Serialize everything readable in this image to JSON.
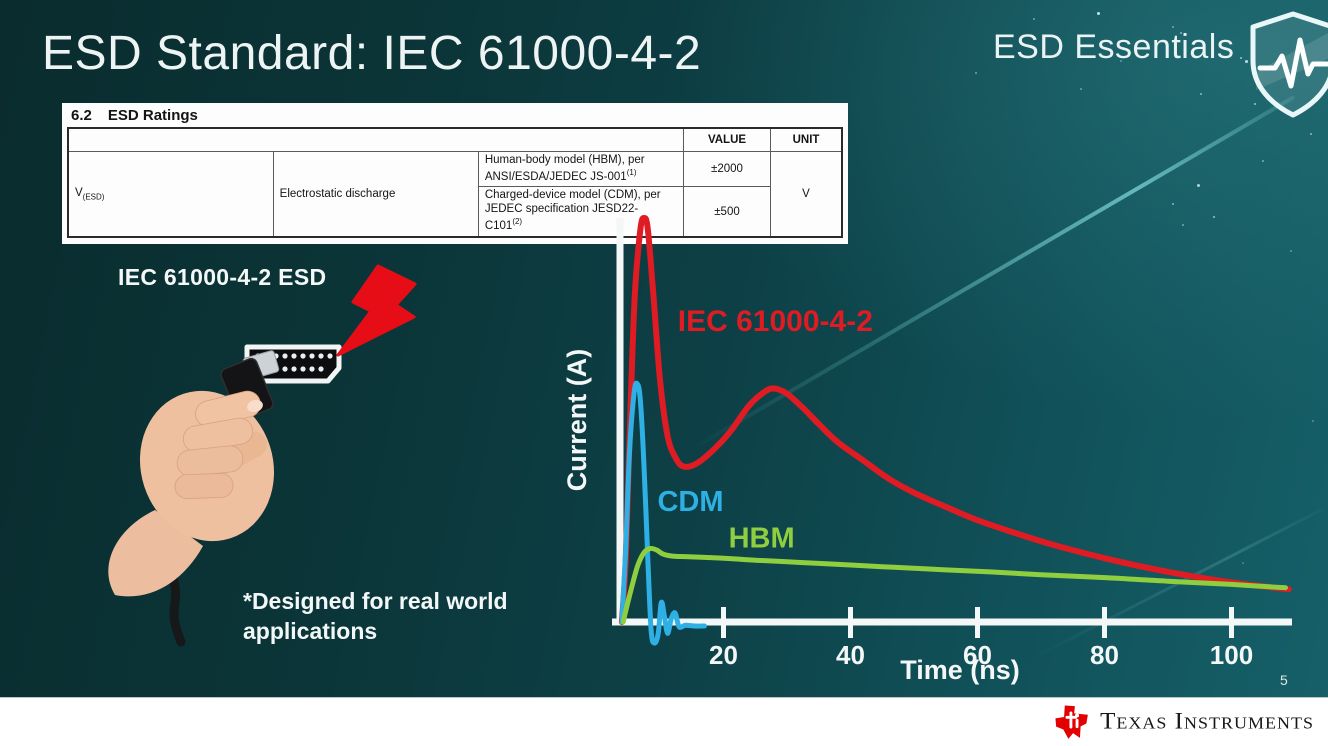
{
  "slide": {
    "title": "ESD Standard: IEC 61000-4-2",
    "badge": "ESD Essentials",
    "page_number": "5",
    "illustration_label": "IEC 61000-4-2 ESD",
    "footnote_line1": "*Designed for real world",
    "footnote_line2": "applications"
  },
  "ratings_table": {
    "section_number": "6.2",
    "section_title": "ESD Ratings",
    "headers": {
      "value": "VALUE",
      "unit": "UNIT"
    },
    "parameter": {
      "symbol": "V",
      "symbol_subscript": "(ESD)",
      "name": "Electrostatic discharge"
    },
    "rows": [
      {
        "description": "Human-body model (HBM), per ANSI/ESDA/JEDEC JS-001",
        "footnote_ref": "(1)",
        "value": "±2000"
      },
      {
        "description_line1": "Charged-device model (CDM), per JEDEC specification JESD22-",
        "description_line2": "C101",
        "footnote_ref": "(2)",
        "value": "±500"
      }
    ],
    "unit": "V"
  },
  "footer": {
    "brand": "Texas Instruments"
  },
  "chart_data": {
    "type": "line",
    "title": "",
    "xlabel": "Time (ns)",
    "ylabel": "Current (A)",
    "x_ticks": [
      20,
      40,
      60,
      80,
      100
    ],
    "x_range_ns": [
      0,
      110
    ],
    "y_axis_unlabeled": true,
    "y_unit_note": "relative current, normalized to IEC 61000-4-2 first peak = 1.0",
    "grid": false,
    "axis_color": "#f3f7f7",
    "legend_position": "inline-labels",
    "series": [
      {
        "name": "IEC 61000-4-2",
        "color": "#df1b23",
        "label_anchor": [
          12.8,
          0.72
        ],
        "points": [
          [
            4.0,
            0.0
          ],
          [
            4.6,
            0.15
          ],
          [
            5.2,
            0.45
          ],
          [
            6.0,
            0.8
          ],
          [
            6.9,
            0.97
          ],
          [
            7.5,
            1.0
          ],
          [
            8.1,
            0.97
          ],
          [
            9.0,
            0.8
          ],
          [
            10.0,
            0.6
          ],
          [
            11.2,
            0.46
          ],
          [
            12.5,
            0.405
          ],
          [
            13.7,
            0.385
          ],
          [
            15.5,
            0.39
          ],
          [
            18,
            0.42
          ],
          [
            21,
            0.47
          ],
          [
            24,
            0.535
          ],
          [
            26.5,
            0.57
          ],
          [
            28,
            0.578
          ],
          [
            30,
            0.565
          ],
          [
            32.5,
            0.53
          ],
          [
            35,
            0.49
          ],
          [
            38,
            0.445
          ],
          [
            42,
            0.4
          ],
          [
            46,
            0.355
          ],
          [
            50,
            0.32
          ],
          [
            55,
            0.285
          ],
          [
            60,
            0.252
          ],
          [
            65,
            0.225
          ],
          [
            70,
            0.2
          ],
          [
            75,
            0.178
          ],
          [
            80,
            0.158
          ],
          [
            85,
            0.14
          ],
          [
            90,
            0.124
          ],
          [
            95,
            0.11
          ],
          [
            100,
            0.098
          ],
          [
            104,
            0.09
          ],
          [
            109,
            0.081
          ]
        ]
      },
      {
        "name": "CDM",
        "color": "#2eb0e4",
        "label_anchor": [
          9.6,
          0.275
        ],
        "points": [
          [
            4.0,
            0.0
          ],
          [
            4.6,
            0.18
          ],
          [
            5.2,
            0.42
          ],
          [
            5.9,
            0.565
          ],
          [
            6.4,
            0.59
          ],
          [
            6.9,
            0.55
          ],
          [
            7.5,
            0.38
          ],
          [
            8.1,
            0.15
          ],
          [
            8.6,
            -0.02
          ],
          [
            9.1,
            -0.052
          ],
          [
            9.7,
            -0.03
          ],
          [
            10.2,
            0.048
          ],
          [
            10.7,
            0.014
          ],
          [
            11.2,
            -0.028
          ],
          [
            11.8,
            0.01
          ],
          [
            12.4,
            0.022
          ],
          [
            13.0,
            -0.012
          ],
          [
            14.0,
            -0.008
          ],
          [
            15.5,
            -0.01
          ],
          [
            17.0,
            -0.01
          ]
        ]
      },
      {
        "name": "HBM",
        "color": "#8fce3f",
        "label_anchor": [
          20.8,
          0.185
        ],
        "points": [
          [
            4.2,
            0.0
          ],
          [
            4.8,
            0.04
          ],
          [
            5.6,
            0.09
          ],
          [
            6.5,
            0.14
          ],
          [
            7.5,
            0.172
          ],
          [
            8.5,
            0.182
          ],
          [
            9.5,
            0.178
          ],
          [
            10.5,
            0.168
          ],
          [
            12,
            0.163
          ],
          [
            14,
            0.162
          ],
          [
            17,
            0.16
          ],
          [
            20,
            0.158
          ],
          [
            25,
            0.153
          ],
          [
            30,
            0.149
          ],
          [
            35,
            0.145
          ],
          [
            40,
            0.141
          ],
          [
            45,
            0.137
          ],
          [
            50,
            0.133
          ],
          [
            55,
            0.129
          ],
          [
            62,
            0.124
          ],
          [
            70,
            0.117
          ],
          [
            80,
            0.11
          ],
          [
            90,
            0.101
          ],
          [
            100,
            0.093
          ],
          [
            105,
            0.088
          ],
          [
            108.5,
            0.085
          ]
        ]
      }
    ]
  }
}
